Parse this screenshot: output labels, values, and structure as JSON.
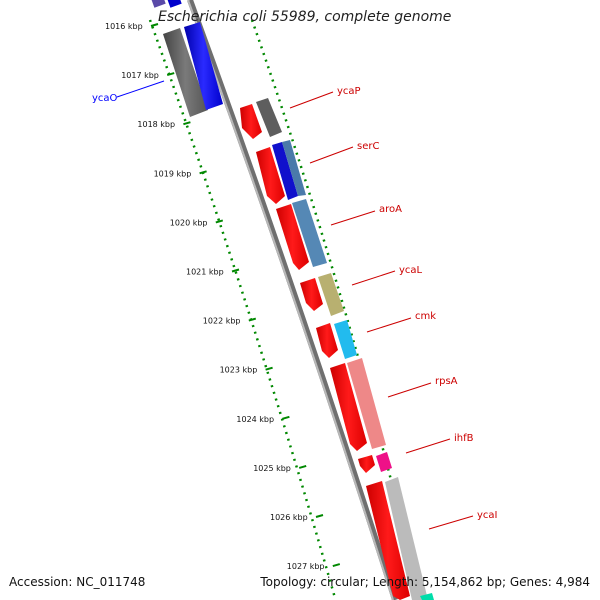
{
  "title": "Escherichia coli 55989, complete genome",
  "accession": "Accession: NC_011748",
  "topology": "Topology: circular; Length: 5,154,862 bp; Genes: 4,984",
  "tick_labels": [
    "1016 kbp",
    "1017 kbp",
    "1018 kbp",
    "1019 kbp",
    "1020 kbp",
    "1021 kbp",
    "1022 kbp",
    "1023 kbp",
    "1024 kbp",
    "1025 kbp",
    "1026 kbp",
    "1027 kbp"
  ],
  "genes": [
    {
      "label": "ycaO",
      "color": "#0000ff"
    },
    {
      "label": "ycaP",
      "color": "#cc0000"
    },
    {
      "label": "serC",
      "color": "#cc0000"
    },
    {
      "label": "aroA",
      "color": "#cc0000"
    },
    {
      "label": "ycaL",
      "color": "#cc0000"
    },
    {
      "label": "cmk",
      "color": "#cc0000"
    },
    {
      "label": "rpsA",
      "color": "#cc0000"
    },
    {
      "label": "ihfB",
      "color": "#cc0000"
    },
    {
      "label": "ycaI",
      "color": "#cc0000"
    }
  ],
  "colors": {
    "cds_red": "#ff0000",
    "ticks_green": "#008800",
    "backbone_gray": "#777777",
    "blue": "#0000ff",
    "dark_gray": "#555555"
  }
}
